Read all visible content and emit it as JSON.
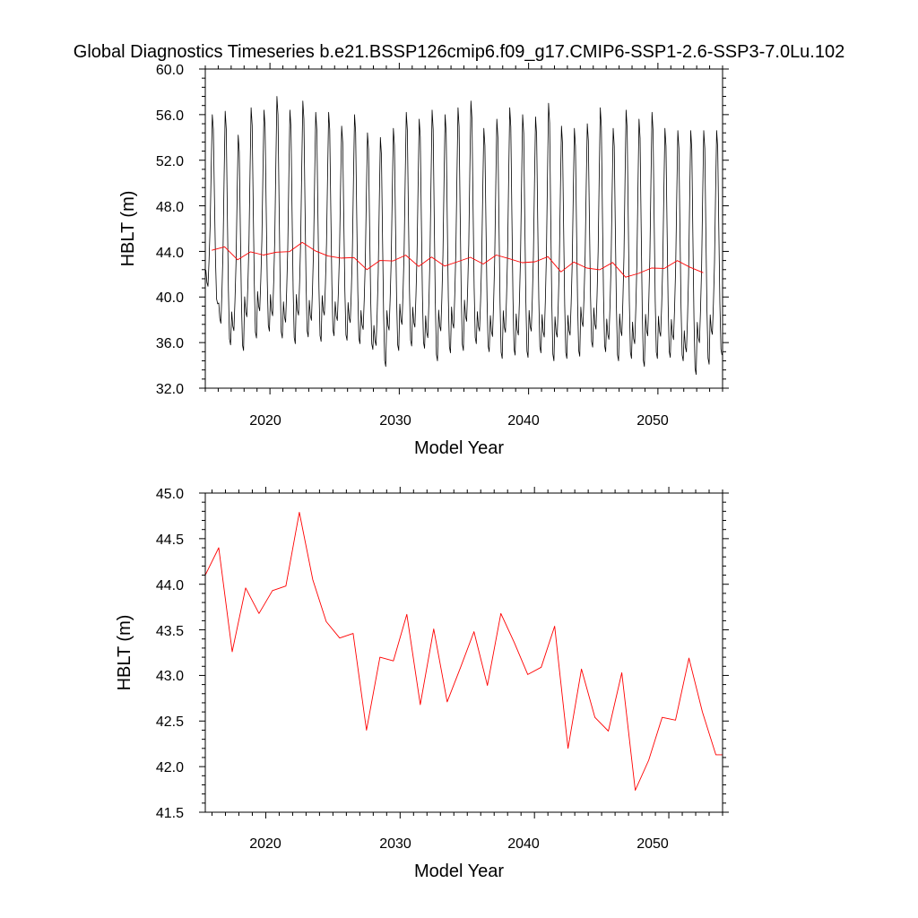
{
  "chart_data": [
    {
      "type": "line",
      "title": "Global Diagnostics Timeseries b.e21.BSSP126cmip6.f09_g17.CMIP6-SSP1-2.6-SSP3-7.0Lu.102",
      "xlabel": "Model Year",
      "ylabel": "HBLT (m)",
      "xlim": [
        2015,
        2055
      ],
      "ylim": [
        32.0,
        60.0
      ],
      "xticks": [
        "2020",
        "2030",
        "2040",
        "2050"
      ],
      "yticks": [
        "32.0",
        "36.0",
        "40.0",
        "44.0",
        "48.0",
        "52.0",
        "56.0",
        "60.0"
      ],
      "series": [
        {
          "color": "#000000",
          "kind": "monthly",
          "monthly_pattern": [
            39.5,
            38.2,
            37.8,
            40.5,
            44.0,
            50.0,
            55.5,
            54.0,
            47.0,
            40.5,
            36.5,
            36.0
          ],
          "annual_peaks": [
            56.0,
            56.3,
            54.2,
            56.6,
            56.4,
            57.6,
            56.4,
            57.2,
            56.2,
            56.2,
            55.0,
            56.0,
            54.4,
            54.0,
            54.8,
            56.2,
            55.6,
            56.4,
            56.0,
            56.6,
            57.2,
            54.8,
            55.6,
            56.6,
            56.0,
            55.8,
            57.0,
            55.0,
            54.8,
            55.2,
            56.6,
            54.8,
            56.4,
            55.6,
            56.2,
            54.8,
            54.6,
            54.6,
            54.6,
            54.6
          ],
          "annual_troughs": [
            39.4,
            35.8,
            35.3,
            36.4,
            37.0,
            36.4,
            35.9,
            36.5,
            36.1,
            36.6,
            36.2,
            35.9,
            35.4,
            33.9,
            35.3,
            35.7,
            35.5,
            34.4,
            35.1,
            35.3,
            35.9,
            35.2,
            34.6,
            34.9,
            34.7,
            35.1,
            34.4,
            34.6,
            34.8,
            35.6,
            35.2,
            34.4,
            34.6,
            33.9,
            34.6,
            34.7,
            34.4,
            33.2,
            34.1,
            34.9
          ]
        },
        {
          "color": "#ff0000",
          "kind": "annual",
          "x": [
            2015.5,
            2016.5,
            2017.5,
            2018.5,
            2019.5,
            2020.5,
            2021.5,
            2022.5,
            2023.5,
            2024.5,
            2025.5,
            2026.5,
            2027.5,
            2028.5,
            2029.5,
            2030.5,
            2031.5,
            2032.5,
            2033.5,
            2034.5,
            2035.5,
            2036.5,
            2037.5,
            2038.5,
            2039.5,
            2040.5,
            2041.5,
            2042.5,
            2043.5,
            2044.5,
            2045.5,
            2046.5,
            2047.5,
            2048.5,
            2049.5,
            2050.5,
            2051.5,
            2052.5,
            2053.5
          ],
          "values": [
            44.1,
            44.4,
            43.26,
            43.96,
            43.68,
            43.93,
            43.98,
            44.79,
            44.05,
            43.59,
            43.41,
            43.46,
            42.4,
            43.2,
            43.16,
            43.67,
            42.68,
            43.51,
            42.71,
            43.09,
            43.48,
            42.89,
            43.68,
            43.36,
            43.01,
            43.09,
            43.54,
            42.2,
            43.07,
            42.54,
            42.39,
            43.03,
            41.74,
            42.07,
            42.54,
            42.51,
            43.19,
            42.6,
            42.13
          ]
        }
      ]
    },
    {
      "type": "line",
      "xlabel": "Model Year",
      "ylabel": "HBLT (m)",
      "xlim": [
        2015.5,
        2054.0
      ],
      "ylim": [
        41.5,
        45.0
      ],
      "xticks": [
        "2020",
        "2030",
        "2040",
        "2050"
      ],
      "yticks": [
        "41.5",
        "42.0",
        "42.5",
        "43.0",
        "43.5",
        "44.0",
        "44.5",
        "45.0"
      ],
      "series": [
        {
          "color": "#ff0000",
          "kind": "annual",
          "x": [
            2015.5,
            2016.5,
            2017.5,
            2018.5,
            2019.5,
            2020.5,
            2021.5,
            2022.5,
            2023.5,
            2024.5,
            2025.5,
            2026.5,
            2027.5,
            2028.5,
            2029.5,
            2030.5,
            2031.5,
            2032.5,
            2033.5,
            2034.5,
            2035.5,
            2036.5,
            2037.5,
            2038.5,
            2039.5,
            2040.5,
            2041.5,
            2042.5,
            2043.5,
            2044.5,
            2045.5,
            2046.5,
            2047.5,
            2048.5,
            2049.5,
            2050.5,
            2051.5,
            2052.5,
            2053.5,
            2054.0
          ],
          "values": [
            44.1,
            44.4,
            43.26,
            43.96,
            43.68,
            43.93,
            43.98,
            44.79,
            44.05,
            43.59,
            43.41,
            43.46,
            42.4,
            43.2,
            43.16,
            43.67,
            42.68,
            43.51,
            42.71,
            43.09,
            43.48,
            42.89,
            43.68,
            43.36,
            43.01,
            43.09,
            43.54,
            42.2,
            43.07,
            42.54,
            42.39,
            43.03,
            41.74,
            42.07,
            42.54,
            42.51,
            43.19,
            42.6,
            42.13,
            42.13
          ]
        }
      ]
    }
  ]
}
